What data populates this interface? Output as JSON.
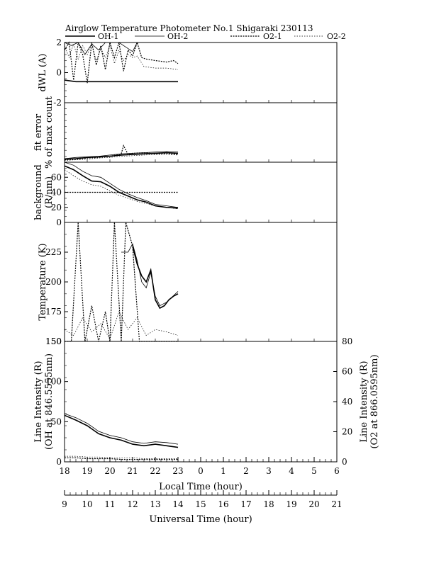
{
  "chart_data": {
    "type": "line",
    "title": "Airglow Temperature Photometer No.1  Shigaraki  230113",
    "legend": [
      "OH-1",
      "OH-2",
      "O2-1",
      "O2-2"
    ],
    "legend_placement": "top",
    "xaxis": {
      "local": {
        "label": "Local Time (hour)",
        "ticks": [
          "18",
          "19",
          "20",
          "21",
          "22",
          "23",
          "0",
          "1",
          "2",
          "3",
          "4",
          "5",
          "6"
        ],
        "range": [
          18,
          30
        ]
      },
      "ut": {
        "label": "Universal Time (hour)",
        "ticks": [
          "9",
          "10",
          "11",
          "12",
          "13",
          "14",
          "15",
          "16",
          "17",
          "18",
          "19",
          "20",
          "21"
        ],
        "range": [
          9,
          21
        ]
      }
    },
    "panels": [
      {
        "ylabel": "dWL (A)",
        "ylim": [
          -2,
          2
        ],
        "yticks": [
          "2",
          "0",
          "-2"
        ],
        "series": [
          {
            "name": "OH-1",
            "x": [
              18.0,
              18.5,
              19.0,
              19.5,
              20.0,
              20.5,
              21.0,
              21.5,
              22.0,
              22.5,
              23.0
            ],
            "y": [
              -0.5,
              -0.6,
              -0.6,
              -0.6,
              -0.6,
              -0.6,
              -0.6,
              -0.6,
              -0.6,
              -0.6,
              -0.6
            ]
          },
          {
            "name": "OH-2",
            "x": [
              18.0,
              18.3,
              18.6,
              18.9,
              19.2,
              19.5,
              19.8,
              20.1,
              20.4,
              20.7,
              21.0,
              21.2,
              21.5,
              22.0,
              22.5,
              23.0
            ],
            "y": [
              2.0,
              1.8,
              2.0,
              1.2,
              1.9,
              1.5,
              2.0,
              2.0,
              2.0,
              1.7,
              1.4,
              2.0,
              2.0,
              2.0,
              2.0,
              2.0
            ]
          },
          {
            "name": "O2-1",
            "x": [
              18.0,
              18.2,
              18.4,
              18.6,
              18.8,
              19.0,
              19.2,
              19.4,
              19.6,
              19.8,
              20.0,
              20.2,
              20.4,
              20.6,
              20.8,
              21.0,
              21.2,
              21.4,
              21.6,
              22.0,
              22.5,
              22.8,
              23.0
            ],
            "y": [
              1.5,
              2.0,
              -0.5,
              2.0,
              1.2,
              -0.7,
              2.0,
              0.5,
              1.8,
              0.2,
              2.0,
              1.0,
              2.0,
              0.1,
              1.5,
              1.1,
              2.0,
              1.0,
              0.9,
              0.8,
              0.7,
              0.8,
              0.6
            ]
          },
          {
            "name": "O2-2",
            "x": [
              18.0,
              18.2,
              18.4,
              18.6,
              18.8,
              19.0,
              19.2,
              19.4,
              19.6,
              19.8,
              20.0,
              20.2,
              20.4,
              20.6,
              20.8,
              21.0,
              21.2,
              21.5,
              22.0,
              22.5,
              23.0
            ],
            "y": [
              1.8,
              1.0,
              1.9,
              0.9,
              1.8,
              1.2,
              1.9,
              0.8,
              1.6,
              1.0,
              1.8,
              0.6,
              1.5,
              0.8,
              1.2,
              1.0,
              1.1,
              0.4,
              0.3,
              0.3,
              0.2
            ]
          }
        ]
      },
      {
        "ylabel": "fit error",
        "ylabel2": "% of max count",
        "ylim": [
          0,
          10
        ],
        "yticks": [],
        "series": [
          {
            "name": "OH-1",
            "x": [
              18.0,
              18.5,
              19.0,
              19.5,
              20.0,
              20.5,
              21.0,
              21.5,
              22.0,
              22.5,
              23.0
            ],
            "y": [
              0.5,
              0.6,
              0.8,
              0.9,
              1.0,
              1.2,
              1.3,
              1.4,
              1.5,
              1.6,
              1.5
            ]
          },
          {
            "name": "OH-2",
            "x": [
              18.0,
              18.5,
              19.0,
              19.5,
              20.0,
              20.5,
              21.0,
              21.5,
              22.0,
              22.5,
              23.0
            ],
            "y": [
              0.6,
              0.8,
              0.9,
              1.0,
              1.2,
              1.4,
              1.5,
              1.6,
              1.7,
              1.8,
              1.7
            ]
          },
          {
            "name": "O2-1",
            "x": [
              18.0,
              18.5,
              19.0,
              19.5,
              20.0,
              20.5,
              20.6,
              20.8,
              21.0,
              21.5,
              22.0,
              22.5,
              23.0
            ],
            "y": [
              0.4,
              0.5,
              0.7,
              0.8,
              1.0,
              1.4,
              2.8,
              1.3,
              1.5,
              1.6,
              1.4,
              1.5,
              1.3
            ]
          },
          {
            "name": "O2-2",
            "x": [
              18.0,
              18.5,
              19.0,
              19.5,
              20.0,
              20.5,
              21.0,
              21.5,
              22.0,
              22.5,
              23.0
            ],
            "y": [
              0.3,
              0.4,
              0.5,
              0.7,
              0.8,
              1.0,
              1.1,
              1.2,
              1.3,
              1.3,
              1.2
            ]
          }
        ]
      },
      {
        "ylabel": "background",
        "ylabel2": "(R/nm)",
        "ylim": [
          0,
          80
        ],
        "yticks": [
          "60",
          "40",
          "20",
          "0"
        ],
        "series": [
          {
            "name": "OH-1",
            "x": [
              18.0,
              18.4,
              18.8,
              19.2,
              19.6,
              20.0,
              20.4,
              20.8,
              21.2,
              21.6,
              22.0,
              22.5,
              23.0
            ],
            "y": [
              75,
              70,
              62,
              55,
              54,
              48,
              40,
              35,
              30,
              27,
              22,
              20,
              19
            ]
          },
          {
            "name": "OH-2",
            "x": [
              18.0,
              18.4,
              18.8,
              19.2,
              19.6,
              20.0,
              20.4,
              20.8,
              21.2,
              21.6,
              22.0,
              22.5,
              23.0
            ],
            "y": [
              80,
              76,
              68,
              62,
              60,
              52,
              44,
              38,
              33,
              29,
              24,
              22,
              20
            ]
          },
          {
            "name": "O2-1",
            "x": [
              18.0,
              18.4,
              18.8,
              19.2,
              19.6,
              20.0,
              20.4,
              20.8,
              21.2,
              21.6,
              22.0,
              22.5,
              23.0
            ],
            "y": [
              40,
              40,
              40,
              40,
              40,
              40,
              40,
              40,
              40,
              40,
              40,
              40,
              40
            ]
          },
          {
            "name": "O2-2",
            "x": [
              18.0,
              18.4,
              18.8,
              19.2,
              19.6,
              20.0,
              20.4,
              20.8,
              21.2,
              21.6,
              22.0,
              22.5,
              23.0
            ],
            "y": [
              70,
              62,
              55,
              50,
              48,
              42,
              36,
              32,
              28,
              25,
              22,
              20,
              18
            ]
          }
        ]
      },
      {
        "ylabel": "Temperature (K)",
        "ylim": [
          150,
          250
        ],
        "yticks": [
          "225",
          "200",
          "175",
          "150"
        ],
        "series": [
          {
            "name": "OH-1",
            "x": [
              21.0,
              21.2,
              21.4,
              21.6,
              21.8,
              22.0,
              22.2,
              22.4,
              22.6,
              22.8,
              23.0
            ],
            "y": [
              230,
              215,
              205,
              200,
              210,
              185,
              178,
              180,
              185,
              188,
              190
            ]
          },
          {
            "name": "OH-2",
            "x": [
              20.5,
              20.8,
              21.0,
              21.2,
              21.4,
              21.6,
              21.8,
              22.0,
              22.2,
              22.5,
              23.0
            ],
            "y": [
              225,
              225,
              232,
              218,
              200,
              195,
              208,
              188,
              180,
              183,
              192
            ]
          },
          {
            "name": "O2-1",
            "x": [
              18.0,
              18.3,
              18.6,
              18.9,
              19.2,
              19.5,
              19.8,
              20.0,
              20.2,
              20.5,
              20.7,
              21.0,
              21.3,
              21.5,
              21.8,
              22.0,
              22.5,
              23.0
            ],
            "y": [
              150,
              150,
              250,
              150,
              180,
              150,
              175,
              150,
              250,
              150,
              250,
              230,
              150,
              150,
              150,
              150,
              150,
              150
            ]
          },
          {
            "name": "O2-2",
            "x": [
              18.0,
              18.4,
              18.8,
              19.2,
              19.6,
              20.0,
              20.4,
              20.8,
              21.2,
              21.6,
              22.0,
              22.5,
              23.0
            ],
            "y": [
              160,
              155,
              170,
              158,
              165,
              152,
              175,
              160,
              170,
              155,
              160,
              158,
              155
            ]
          }
        ]
      },
      {
        "ylabel": "Line Intensity (R)",
        "ylabel2": "(OH at 846.5555nm)",
        "ylim": [
          0,
          150
        ],
        "yticks": [
          "150",
          "100",
          "50",
          "0"
        ],
        "ylabel_right": "Line Intensity (R)",
        "ylabel2_right": "(O2 at 866.0595nm)",
        "ylim_right": [
          0,
          80
        ],
        "yticks_right": [
          "80",
          "60",
          "40",
          "20",
          "0"
        ],
        "series": [
          {
            "name": "OH-1",
            "x": [
              18.0,
              18.5,
              19.0,
              19.5,
              20.0,
              20.5,
              21.0,
              21.5,
              22.0,
              22.5,
              23.0
            ],
            "y": [
              58,
              52,
              45,
              35,
              30,
              27,
              22,
              20,
              22,
              20,
              18
            ]
          },
          {
            "name": "OH-2",
            "x": [
              18.0,
              18.5,
              19.0,
              19.5,
              20.0,
              20.5,
              21.0,
              21.5,
              22.0,
              22.5,
              23.0
            ],
            "y": [
              60,
              55,
              48,
              38,
              33,
              30,
              25,
              23,
              25,
              24,
              22
            ]
          },
          {
            "name": "O2-1",
            "x": [
              18.0,
              18.5,
              19.0,
              19.5,
              20.0,
              20.5,
              21.0,
              21.5,
              22.0,
              22.5,
              23.0
            ],
            "y": [
              5,
              5,
              4,
              4,
              4,
              3,
              3,
              3,
              3,
              3,
              3
            ]
          },
          {
            "name": "O2-2",
            "x": [
              18.0,
              18.5,
              19.0,
              19.5,
              20.0,
              20.5,
              21.0,
              21.5,
              22.0,
              22.5,
              23.0
            ],
            "y": [
              7,
              7,
              6,
              6,
              5,
              5,
              5,
              4,
              4,
              4,
              4
            ]
          }
        ]
      }
    ]
  }
}
